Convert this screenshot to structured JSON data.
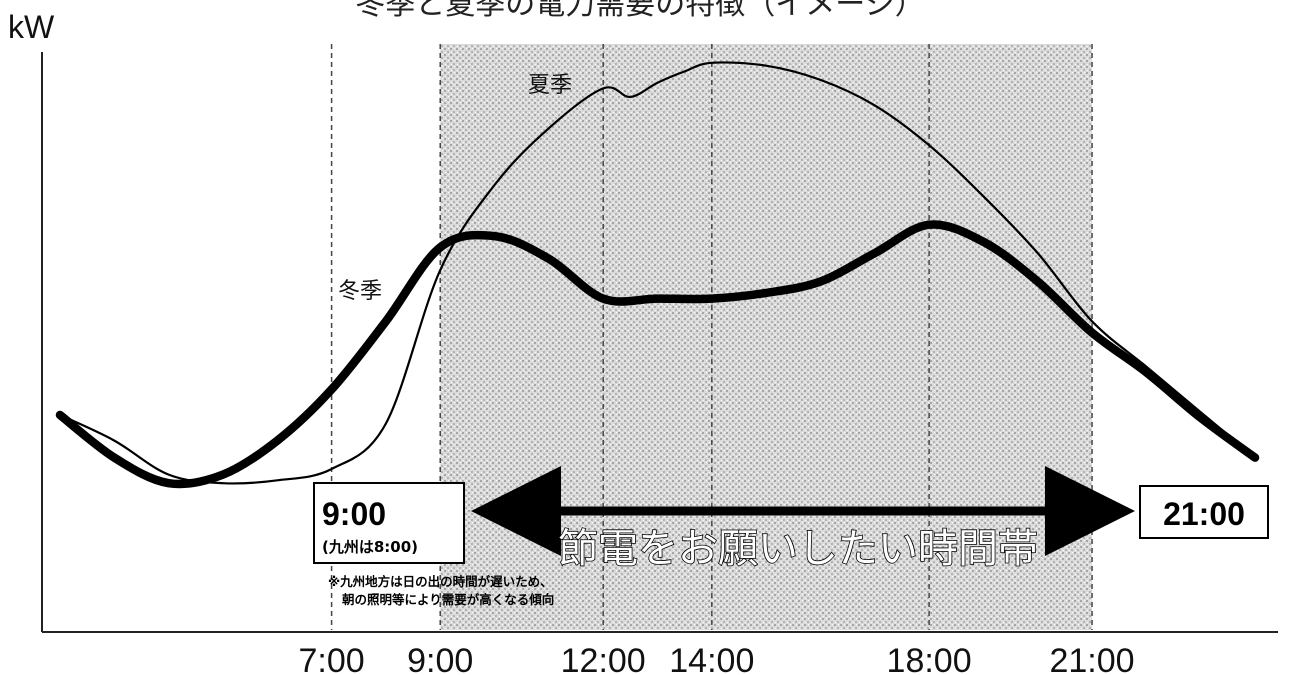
{
  "chart_data": {
    "type": "line",
    "title": "冬季と夏季の電力需要の特徴（イメージ）",
    "ylabel": "kW",
    "xlabel": "",
    "x_ticks": [
      "7:00",
      "9:00",
      "12:00",
      "14:00",
      "18:00",
      "21:00"
    ],
    "xlim": [
      2,
      24
    ],
    "ylim": [
      0,
      100
    ],
    "series": [
      {
        "name": "夏季",
        "style": "thin",
        "x": [
          2,
          3,
          4,
          5,
          6,
          7,
          8,
          9,
          10,
          11,
          12,
          12.5,
          13,
          13.5,
          14,
          15,
          16,
          17,
          18,
          19,
          20,
          21,
          22,
          23,
          24
        ],
        "y": [
          37.5,
          33,
          27,
          25.5,
          26,
          28,
          36,
          63,
          78,
          88,
          95,
          93.5,
          96,
          98,
          99.5,
          99,
          96.5,
          92,
          85,
          76,
          66,
          54,
          46,
          38,
          30
        ]
      },
      {
        "name": "冬季",
        "style": "thick",
        "x": [
          2,
          3,
          4,
          5,
          6,
          7,
          8,
          9,
          10,
          11,
          12,
          13,
          14,
          15,
          16,
          17,
          18,
          19,
          20,
          21,
          22,
          23,
          24
        ],
        "y": [
          37.5,
          30,
          25.5,
          27,
          33,
          42,
          54,
          67,
          69,
          65,
          58,
          58,
          58,
          59,
          61,
          66,
          71,
          68,
          61,
          52,
          45,
          37,
          30
        ]
      }
    ],
    "highlight": {
      "from": 9,
      "to": 21
    },
    "vertical_markers": [
      7,
      9,
      12,
      14,
      18,
      21
    ],
    "grid": false,
    "legend": "inline labels"
  },
  "annotations": {
    "start_time": "9:00",
    "start_note": "(九州は8:00)",
    "end_time": "21:00",
    "banner": "節電をお願いしたい時間帯",
    "footnote_line1": "※九州地方は日の出の時間が遅いため、",
    "footnote_line2": "朝の照明等により需要が高くなる傾向"
  },
  "colors": {
    "line": "#000000",
    "highlight": "#bdbdbd",
    "background": "#ffffff"
  }
}
